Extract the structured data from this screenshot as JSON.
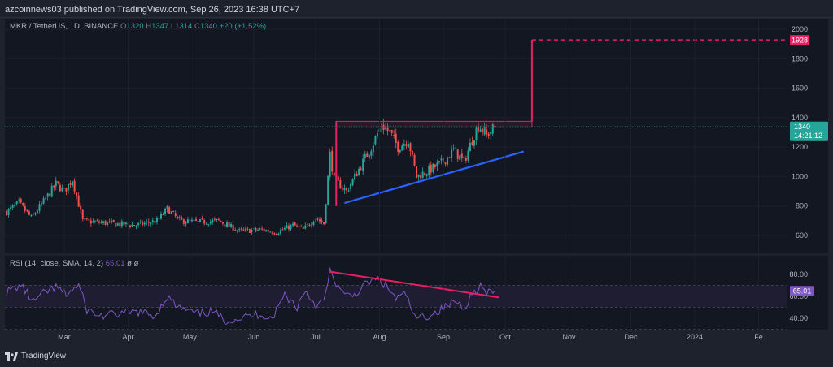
{
  "header": {
    "attribution": "azcoinnews03 published on TradingView.com, Sep 26, 2023 16:38 UTC+7"
  },
  "legend": {
    "symbol": "MKR / TetherUS, 1D, BINANCE",
    "o_label": "O",
    "o": "1320",
    "h_label": "H",
    "h": "1347",
    "l_label": "L",
    "l": "1314",
    "c_label": "C",
    "c": "1340",
    "change": "+20 (+1.52%)"
  },
  "rsi_legend": {
    "title": "RSI (14, close, SMA, 14, 2)",
    "value": "65.01",
    "na1": "ø",
    "na2": "ø"
  },
  "footer": {
    "brand": "TradingView"
  },
  "colors": {
    "up": "#26a69a",
    "down": "#ef5350",
    "pattern": "#e91e63",
    "support": "#2962ff",
    "rsi_line": "#7e57c2",
    "rsi_divergence": "#e91e63",
    "background": "#131722",
    "price_tag": "#26a69a",
    "target_tag": "#e91e63",
    "rsi_tag": "#7e57c2"
  },
  "chart_data": [
    {
      "type": "candlestick",
      "title": "MKR / TetherUS, 1D, BINANCE",
      "x_ticks": [
        "Mar",
        "Apr",
        "May",
        "Jun",
        "Jul",
        "Aug",
        "Sep",
        "Oct",
        "Nov",
        "Dec",
        "2024",
        "Fe"
      ],
      "y_ticks": [
        600,
        800,
        1000,
        1200,
        1400,
        1600,
        1800,
        2000
      ],
      "ylim": [
        480,
        2060
      ],
      "last_price": 1340,
      "countdown": "14:21:12",
      "target": 1928,
      "grid": false,
      "price_path": [
        [
          "2023-02-01",
          760
        ],
        [
          "2023-02-07",
          820
        ],
        [
          "2023-02-13",
          720
        ],
        [
          "2023-02-19",
          830
        ],
        [
          "2023-02-25",
          950
        ],
        [
          "2023-03-01",
          900
        ],
        [
          "2023-03-05",
          980
        ],
        [
          "2023-03-10",
          700
        ],
        [
          "2023-03-16",
          690
        ],
        [
          "2023-03-25",
          680
        ],
        [
          "2023-04-05",
          670
        ],
        [
          "2023-04-15",
          700
        ],
        [
          "2023-04-20",
          780
        ],
        [
          "2023-04-26",
          700
        ],
        [
          "2023-05-05",
          690
        ],
        [
          "2023-05-15",
          700
        ],
        [
          "2023-05-25",
          630
        ],
        [
          "2023-06-05",
          640
        ],
        [
          "2023-06-12",
          620
        ],
        [
          "2023-06-20",
          670
        ],
        [
          "2023-06-25",
          640
        ],
        [
          "2023-07-01",
          720
        ],
        [
          "2023-07-05",
          680
        ],
        [
          "2023-07-08",
          1150
        ],
        [
          "2023-07-10",
          980
        ],
        [
          "2023-07-16",
          900
        ],
        [
          "2023-07-22",
          1050
        ],
        [
          "2023-07-28",
          1200
        ],
        [
          "2023-08-02",
          1350
        ],
        [
          "2023-08-06",
          1300
        ],
        [
          "2023-08-10",
          1200
        ],
        [
          "2023-08-15",
          1250
        ],
        [
          "2023-08-19",
          1000
        ],
        [
          "2023-08-26",
          1050
        ],
        [
          "2023-09-01",
          1100
        ],
        [
          "2023-09-06",
          1180
        ],
        [
          "2023-09-11",
          1100
        ],
        [
          "2023-09-15",
          1250
        ],
        [
          "2023-09-18",
          1350
        ],
        [
          "2023-09-22",
          1280
        ],
        [
          "2023-09-26",
          1340
        ]
      ],
      "annotations": {
        "resistance_zone": {
          "from": "2023-07-11",
          "to": "2023-10-14",
          "low": 1335,
          "high": 1375
        },
        "flagpole": {
          "date": "2023-07-11",
          "low": 800,
          "high": 1375
        },
        "breakout_projection": {
          "date": "2023-10-14",
          "from": 1375,
          "to": 1928,
          "extend_to": "2024-02-03"
        },
        "support_line": [
          [
            "2023-07-15",
            820
          ],
          [
            "2023-10-10",
            1170
          ]
        ]
      }
    },
    {
      "type": "line",
      "title": "RSI (14, close, SMA, 14, 2)",
      "y_ticks": [
        40,
        60,
        80
      ],
      "ylim": [
        30,
        90
      ],
      "bands": [
        30,
        50,
        70
      ],
      "last_value": 65.01,
      "values_path": [
        [
          "2023-02-01",
          64
        ],
        [
          "2023-02-08",
          70
        ],
        [
          "2023-02-14",
          55
        ],
        [
          "2023-02-20",
          64
        ],
        [
          "2023-02-25",
          68
        ],
        [
          "2023-03-02",
          62
        ],
        [
          "2023-03-08",
          70
        ],
        [
          "2023-03-12",
          48
        ],
        [
          "2023-03-18",
          42
        ],
        [
          "2023-03-28",
          44
        ],
        [
          "2023-04-06",
          46
        ],
        [
          "2023-04-14",
          42
        ],
        [
          "2023-04-20",
          60
        ],
        [
          "2023-04-25",
          50
        ],
        [
          "2023-05-04",
          44
        ],
        [
          "2023-05-12",
          46
        ],
        [
          "2023-05-18",
          38
        ],
        [
          "2023-05-25",
          40
        ],
        [
          "2023-06-04",
          44
        ],
        [
          "2023-06-10",
          40
        ],
        [
          "2023-06-16",
          62
        ],
        [
          "2023-06-22",
          50
        ],
        [
          "2023-06-26",
          66
        ],
        [
          "2023-07-01",
          52
        ],
        [
          "2023-07-05",
          55
        ],
        [
          "2023-07-08",
          82
        ],
        [
          "2023-07-11",
          72
        ],
        [
          "2023-07-15",
          60
        ],
        [
          "2023-07-20",
          62
        ],
        [
          "2023-07-26",
          72
        ],
        [
          "2023-07-31",
          76
        ],
        [
          "2023-08-04",
          70
        ],
        [
          "2023-08-09",
          58
        ],
        [
          "2023-08-14",
          62
        ],
        [
          "2023-08-18",
          40
        ],
        [
          "2023-08-24",
          42
        ],
        [
          "2023-08-29",
          46
        ],
        [
          "2023-09-02",
          50
        ],
        [
          "2023-09-07",
          56
        ],
        [
          "2023-09-11",
          50
        ],
        [
          "2023-09-15",
          62
        ],
        [
          "2023-09-19",
          70
        ],
        [
          "2023-09-22",
          62
        ],
        [
          "2023-09-26",
          65
        ]
      ],
      "annotations": {
        "divergence_line": [
          [
            "2023-07-08",
            82.5
          ],
          [
            "2023-09-28",
            59
          ]
        ]
      }
    }
  ]
}
